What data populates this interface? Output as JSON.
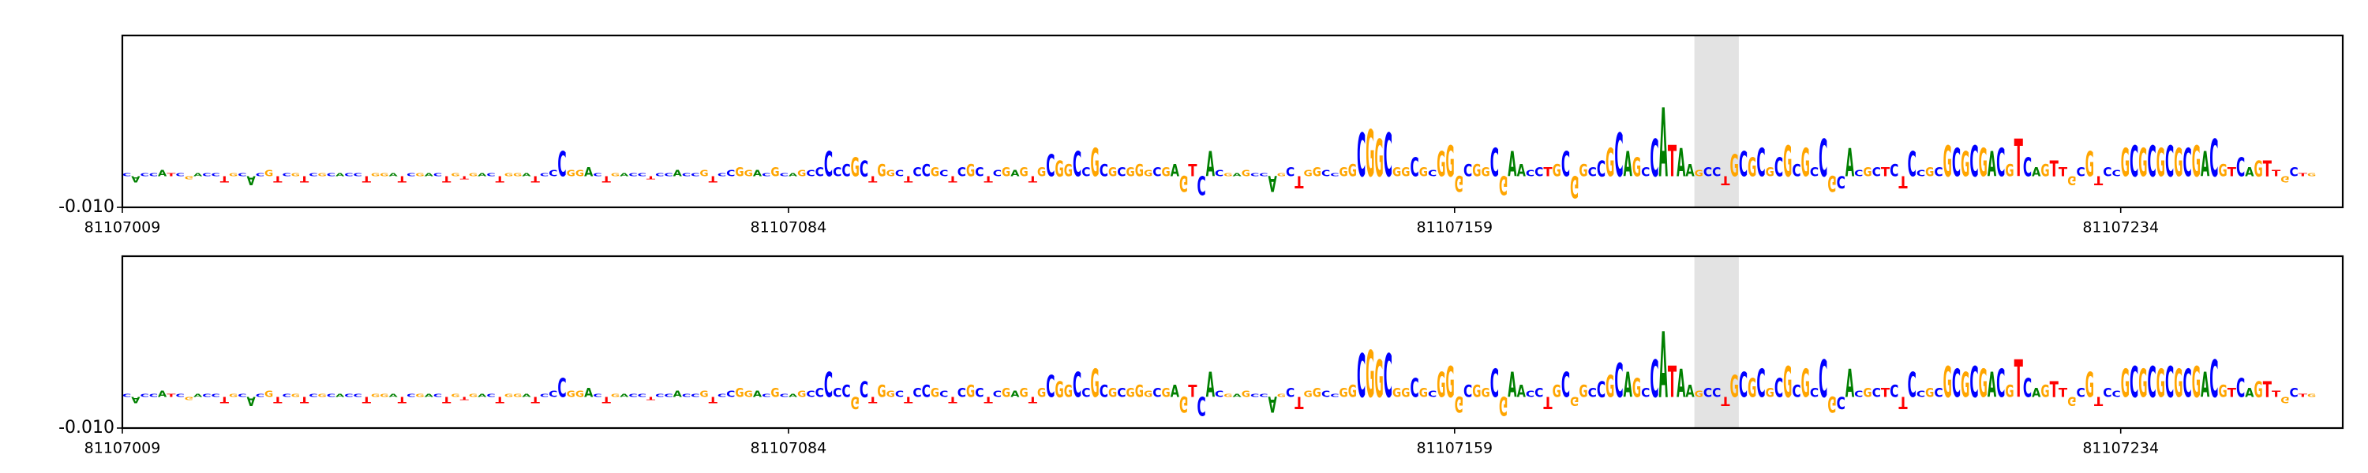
{
  "chart_data": [
    {
      "type": "logo",
      "bases": [
        "C",
        "A",
        "C",
        "C",
        "A",
        "T",
        "C",
        "G",
        "A",
        "C",
        "C",
        "T",
        "G",
        "C",
        "A",
        "C",
        "G",
        "T",
        "C",
        "G",
        "T",
        "C",
        "G",
        "C",
        "A",
        "C",
        "C",
        "T",
        "G",
        "G",
        "A",
        "T",
        "C",
        "G",
        "A",
        "C",
        "T",
        "G",
        "T",
        "G",
        "A",
        "C",
        "T",
        "G",
        "G",
        "A",
        "T",
        "C",
        "C",
        "C",
        "G",
        "G",
        "A",
        "C",
        "T",
        "G",
        "A",
        "C",
        "C",
        "T",
        "C",
        "C",
        "A",
        "C",
        "C",
        "G",
        "T",
        "C",
        "C",
        "G",
        "G",
        "A",
        "C",
        "G",
        "C",
        "A",
        "G",
        "C",
        "C",
        "C",
        "C",
        "C",
        "G",
        "C",
        "T",
        "G",
        "G",
        "C",
        "T",
        "C",
        "C",
        "G",
        "C",
        "T",
        "C",
        "G",
        "C",
        "T",
        "C",
        "G",
        "A",
        "G",
        "T",
        "G",
        "C",
        "G",
        "G",
        "C",
        "C",
        "G",
        "C",
        "G",
        "C",
        "G",
        "G",
        "G",
        "C",
        "G",
        "A",
        "G",
        "T",
        "C",
        "A",
        "C",
        "G",
        "A",
        "G",
        "C",
        "C",
        "A",
        "G",
        "C",
        "T",
        "G",
        "G",
        "C",
        "C",
        "G",
        "G",
        "C",
        "G",
        "G",
        "C",
        "G",
        "G",
        "C",
        "G",
        "C",
        "G",
        "G",
        "G",
        "C",
        "G",
        "G",
        "C",
        "G",
        "A",
        "A",
        "C",
        "C",
        "T",
        "G",
        "C",
        "G",
        "G",
        "C",
        "C",
        "G",
        "C",
        "A",
        "G",
        "C",
        "C",
        "A",
        "T",
        "A",
        "A",
        "G",
        "C",
        "C",
        "T",
        "G",
        "C",
        "G",
        "C",
        "G",
        "C",
        "G",
        "C",
        "G",
        "C",
        "C",
        "G",
        "C",
        "A",
        "C",
        "G",
        "C",
        "T",
        "C",
        "T",
        "C",
        "C",
        "G",
        "C",
        "G",
        "C",
        "G",
        "C",
        "G",
        "A",
        "C",
        "G",
        "T",
        "C",
        "A",
        "G",
        "T",
        "T",
        "G",
        "C",
        "G",
        "T",
        "C",
        "C",
        "G",
        "C",
        "G",
        "C",
        "G",
        "C",
        "G",
        "C",
        "G",
        "A",
        "C",
        "G",
        "T",
        "C",
        "A",
        "G",
        "T",
        "T",
        "G",
        "C",
        "T",
        "G"
      ],
      "values": [
        0.001,
        -0.002,
        0.001,
        0.001,
        0.002,
        0.001,
        0.001,
        -0.001,
        0.001,
        0.001,
        0.001,
        -0.002,
        0.001,
        0.001,
        -0.003,
        0.001,
        0.002,
        -0.002,
        0.001,
        0.001,
        -0.002,
        0.001,
        0.001,
        0.001,
        0.001,
        0.001,
        0.001,
        -0.002,
        0.001,
        0.001,
        0.001,
        -0.002,
        0.001,
        0.001,
        0.001,
        0.001,
        -0.002,
        0.001,
        -0.001,
        0.001,
        0.001,
        0.001,
        -0.002,
        0.001,
        0.001,
        0.001,
        -0.002,
        0.001,
        0.002,
        0.008,
        0.002,
        0.002,
        0.003,
        0.001,
        -0.002,
        0.001,
        0.001,
        0.001,
        0.001,
        -0.001,
        0.001,
        0.001,
        0.002,
        0.001,
        0.001,
        0.002,
        -0.002,
        0.001,
        0.002,
        0.003,
        0.002,
        0.002,
        0.001,
        0.003,
        0.001,
        0.001,
        0.002,
        0.002,
        0.003,
        0.008,
        0.003,
        0.004,
        0.006,
        0.005,
        -0.002,
        0.004,
        0.002,
        0.002,
        -0.002,
        0.003,
        0.004,
        0.003,
        0.002,
        -0.002,
        0.003,
        0.004,
        0.003,
        -0.002,
        0.002,
        0.003,
        0.002,
        0.003,
        -0.002,
        0.003,
        0.007,
        0.005,
        0.004,
        0.008,
        0.003,
        0.009,
        0.004,
        0.003,
        0.003,
        0.003,
        0.004,
        0.002,
        0.003,
        0.003,
        0.004,
        -0.005,
        0.004,
        -0.006,
        0.008,
        0.002,
        0.001,
        0.001,
        0.002,
        0.001,
        0.001,
        -0.005,
        0.001,
        0.003,
        -0.004,
        0.002,
        0.003,
        0.002,
        0.001,
        0.003,
        0.004,
        0.014,
        0.015,
        0.012,
        0.014,
        0.003,
        0.003,
        0.006,
        0.003,
        0.002,
        0.008,
        0.01,
        -0.005,
        0.004,
        0.004,
        0.003,
        0.009,
        -0.006,
        0.008,
        0.004,
        0.002,
        0.003,
        0.003,
        0.004,
        0.008,
        -0.007,
        0.004,
        0.003,
        0.005,
        0.009,
        0.014,
        0.008,
        0.006,
        0.003,
        0.012,
        0.022,
        0.01,
        0.009,
        0.004,
        0.002,
        0.003,
        0.003,
        -0.003,
        0.007,
        0.008,
        0.006,
        0.009,
        0.003,
        0.006,
        0.01,
        0.004,
        0.009,
        0.003,
        0.012,
        -0.005,
        -0.004,
        0.009,
        0.002,
        0.003,
        0.003,
        0.003,
        0.004,
        -0.004,
        0.008,
        0.002,
        0.003,
        0.003,
        0.01,
        0.009,
        0.008,
        0.01,
        0.009,
        0.008,
        0.009,
        0.004,
        0.012,
        0.006,
        0.003,
        0.004,
        0.005,
        0.003,
        -0.003,
        0.003,
        0.008,
        -0.003,
        0.003,
        0.002,
        0.009,
        0.01,
        0.009,
        0.01,
        0.009,
        0.01,
        0.009,
        0.009,
        0.01,
        0.008,
        0.012,
        0.004,
        0.003,
        0.006,
        0.003,
        0.005,
        0.005,
        0.002,
        -0.002,
        0.003,
        0.001,
        0.001,
        0.001,
        0.001,
        0.001
      ],
      "xlim": [
        81107009,
        81107259
      ],
      "xticks": [
        81107009,
        81107084,
        81107159,
        81107234
      ],
      "ylim": [
        -0.01,
        0.045
      ],
      "yticks": [
        {
          "value": -0.01,
          "label": "-0.010"
        }
      ],
      "highlight": [
        81107186,
        81107191
      ],
      "colors": {
        "A": "#008000",
        "C": "#0000ff",
        "G": "#ffa500",
        "T": "#ff0000"
      }
    },
    {
      "type": "logo",
      "bases": [
        "C",
        "A",
        "C",
        "C",
        "A",
        "T",
        "C",
        "G",
        "A",
        "C",
        "C",
        "T",
        "G",
        "C",
        "A",
        "C",
        "G",
        "T",
        "C",
        "G",
        "T",
        "C",
        "G",
        "C",
        "A",
        "C",
        "C",
        "T",
        "G",
        "G",
        "A",
        "T",
        "C",
        "G",
        "A",
        "C",
        "T",
        "G",
        "T",
        "G",
        "A",
        "C",
        "T",
        "G",
        "G",
        "A",
        "T",
        "C",
        "C",
        "C",
        "G",
        "G",
        "A",
        "C",
        "T",
        "G",
        "A",
        "C",
        "C",
        "T",
        "C",
        "C",
        "A",
        "C",
        "C",
        "G",
        "T",
        "C",
        "C",
        "G",
        "G",
        "A",
        "C",
        "G",
        "C",
        "A",
        "G",
        "C",
        "C",
        "C",
        "C",
        "C",
        "G",
        "C",
        "T",
        "G",
        "G",
        "C",
        "T",
        "C",
        "C",
        "G",
        "C",
        "T",
        "C",
        "G",
        "C",
        "T",
        "C",
        "G",
        "A",
        "G",
        "T",
        "G",
        "C",
        "G",
        "G",
        "C",
        "C",
        "G",
        "C",
        "G",
        "C",
        "G",
        "G",
        "G",
        "C",
        "G",
        "A",
        "G",
        "T",
        "C",
        "A",
        "C",
        "G",
        "A",
        "G",
        "C",
        "C",
        "A",
        "G",
        "C",
        "T",
        "G",
        "G",
        "C",
        "C",
        "G",
        "G",
        "C",
        "G",
        "G",
        "C",
        "G",
        "G",
        "C",
        "G",
        "C",
        "G",
        "G",
        "G",
        "C",
        "G",
        "G",
        "C",
        "G",
        "A",
        "A",
        "C",
        "C",
        "T",
        "G",
        "C",
        "G",
        "G",
        "C",
        "C",
        "G",
        "C",
        "A",
        "G",
        "C",
        "C",
        "A",
        "T",
        "A",
        "A",
        "G",
        "C",
        "C",
        "T",
        "G",
        "C",
        "G",
        "C",
        "G",
        "C",
        "G",
        "C",
        "G",
        "C",
        "C",
        "G",
        "C",
        "A",
        "C",
        "G",
        "C",
        "T",
        "C",
        "T",
        "C",
        "C",
        "G",
        "C",
        "G",
        "C",
        "G",
        "C",
        "G",
        "A",
        "C",
        "G",
        "T",
        "C",
        "A",
        "G",
        "T",
        "T",
        "G",
        "C",
        "G",
        "T",
        "C",
        "C",
        "G",
        "C",
        "G",
        "C",
        "G",
        "C",
        "G",
        "C",
        "G",
        "A",
        "C",
        "G",
        "T",
        "C",
        "A",
        "G",
        "T",
        "T",
        "G",
        "C",
        "T",
        "G"
      ],
      "values": [
        0.001,
        -0.002,
        0.001,
        0.001,
        0.002,
        0.001,
        0.001,
        -0.001,
        0.001,
        0.001,
        0.001,
        -0.002,
        0.001,
        0.001,
        -0.003,
        0.001,
        0.002,
        -0.002,
        0.001,
        0.001,
        -0.002,
        0.001,
        0.001,
        0.001,
        0.001,
        0.001,
        0.001,
        -0.002,
        0.001,
        0.001,
        0.001,
        -0.002,
        0.001,
        0.001,
        0.001,
        0.001,
        -0.002,
        0.001,
        -0.001,
        0.001,
        0.001,
        0.001,
        -0.002,
        0.001,
        0.001,
        0.001,
        -0.002,
        0.001,
        0.002,
        0.006,
        0.002,
        0.002,
        0.003,
        0.001,
        -0.002,
        0.001,
        0.001,
        0.001,
        0.001,
        -0.001,
        0.001,
        0.001,
        0.002,
        0.001,
        0.001,
        0.002,
        -0.002,
        0.001,
        0.002,
        0.003,
        0.002,
        0.002,
        0.001,
        0.003,
        0.001,
        0.001,
        0.002,
        0.002,
        0.003,
        0.008,
        0.003,
        0.004,
        -0.004,
        0.005,
        -0.002,
        0.004,
        0.002,
        0.002,
        -0.002,
        0.003,
        0.004,
        0.003,
        0.002,
        -0.002,
        0.003,
        0.004,
        0.003,
        -0.002,
        0.002,
        0.003,
        0.002,
        0.003,
        -0.002,
        0.003,
        0.007,
        0.005,
        0.004,
        0.008,
        0.003,
        0.009,
        0.004,
        0.003,
        0.003,
        0.003,
        0.004,
        0.002,
        0.003,
        0.003,
        0.004,
        -0.005,
        0.004,
        -0.006,
        0.008,
        0.002,
        0.001,
        0.001,
        0.002,
        0.001,
        0.001,
        -0.005,
        0.001,
        0.003,
        -0.004,
        0.002,
        0.003,
        0.002,
        0.001,
        0.003,
        0.004,
        0.014,
        0.015,
        0.012,
        0.014,
        0.003,
        0.003,
        0.006,
        0.003,
        0.002,
        0.008,
        0.01,
        -0.005,
        0.004,
        0.004,
        0.003,
        0.009,
        -0.006,
        0.008,
        0.004,
        0.002,
        0.003,
        -0.004,
        0.004,
        0.008,
        -0.003,
        0.004,
        0.003,
        0.005,
        0.007,
        0.011,
        0.008,
        0.006,
        0.003,
        0.012,
        0.021,
        0.01,
        0.009,
        0.004,
        0.002,
        0.003,
        0.003,
        -0.003,
        0.007,
        0.008,
        0.006,
        0.009,
        0.003,
        0.006,
        0.01,
        0.004,
        0.009,
        0.003,
        0.012,
        -0.005,
        -0.004,
        0.009,
        0.002,
        0.003,
        0.003,
        0.003,
        0.004,
        -0.004,
        0.008,
        0.002,
        0.003,
        0.003,
        0.01,
        0.009,
        0.008,
        0.01,
        0.009,
        0.008,
        0.009,
        0.004,
        0.012,
        0.006,
        0.003,
        0.004,
        0.005,
        0.003,
        -0.003,
        0.003,
        0.008,
        -0.003,
        0.003,
        0.002,
        0.009,
        0.01,
        0.009,
        0.01,
        0.009,
        0.01,
        0.009,
        0.009,
        0.01,
        0.008,
        0.012,
        0.004,
        0.003,
        0.006,
        0.003,
        0.005,
        0.005,
        0.002,
        -0.002,
        0.003,
        0.001,
        0.001,
        0.001,
        0.001,
        0.001
      ],
      "xlim": [
        81107009,
        81107259
      ],
      "xticks": [
        81107009,
        81107084,
        81107159,
        81107234
      ],
      "ylim": [
        -0.01,
        0.045
      ],
      "yticks": [
        {
          "value": -0.01,
          "label": "-0.010"
        }
      ],
      "highlight": [
        81107186,
        81107191
      ],
      "colors": {
        "A": "#008000",
        "C": "#0000ff",
        "G": "#ffa500",
        "T": "#ff0000"
      }
    }
  ]
}
